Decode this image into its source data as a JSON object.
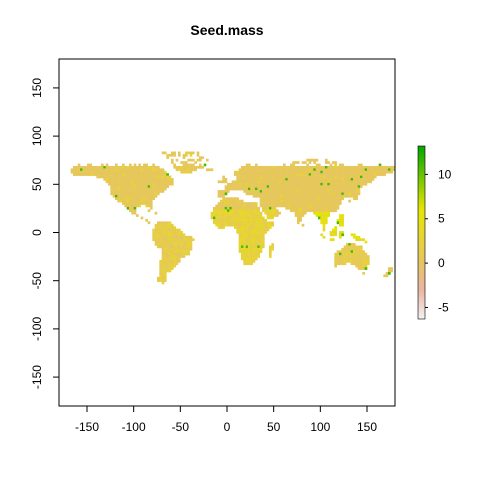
{
  "chart_data": {
    "type": "heatmap",
    "title": "Seed.mass",
    "xlabel": "",
    "ylabel": "",
    "xlim": [
      -180,
      180
    ],
    "ylim": [
      -180,
      180
    ],
    "x_ticks": [
      -150,
      -100,
      -50,
      0,
      50,
      100,
      150
    ],
    "y_ticks": [
      -150,
      -100,
      -50,
      0,
      50,
      100,
      150
    ],
    "x_tick_labels": [
      "-150",
      "-100",
      "-50",
      "0",
      "50",
      "100",
      "150"
    ],
    "y_tick_labels": [
      "-150",
      "-100",
      "-50",
      "0",
      "50",
      "100",
      "150"
    ],
    "grid": false,
    "legend": {
      "type": "colorbar",
      "placement": "right",
      "range": [
        -6.3,
        13.2
      ],
      "ticks": [
        -5,
        0,
        5,
        10
      ],
      "tick_labels": [
        "-5",
        "0",
        "5",
        "10"
      ],
      "colors": [
        "#f2f2f2",
        "#ebb4a2",
        "#e6c463",
        "#e6e600",
        "#00a600"
      ],
      "stops": [
        -6.3,
        -3,
        0,
        6,
        13.2
      ]
    },
    "dominant_value": 0.5,
    "regions": [
      {
        "name": "North America",
        "value": 0.5
      },
      {
        "name": "South America",
        "value": 1.5
      },
      {
        "name": "Europe and Asia",
        "value": 0.5
      },
      {
        "name": "Africa",
        "value": 2.5
      },
      {
        "name": "Australia",
        "value": 1.0
      },
      {
        "name": "Southeast Asia",
        "value": 5.0
      }
    ]
  }
}
